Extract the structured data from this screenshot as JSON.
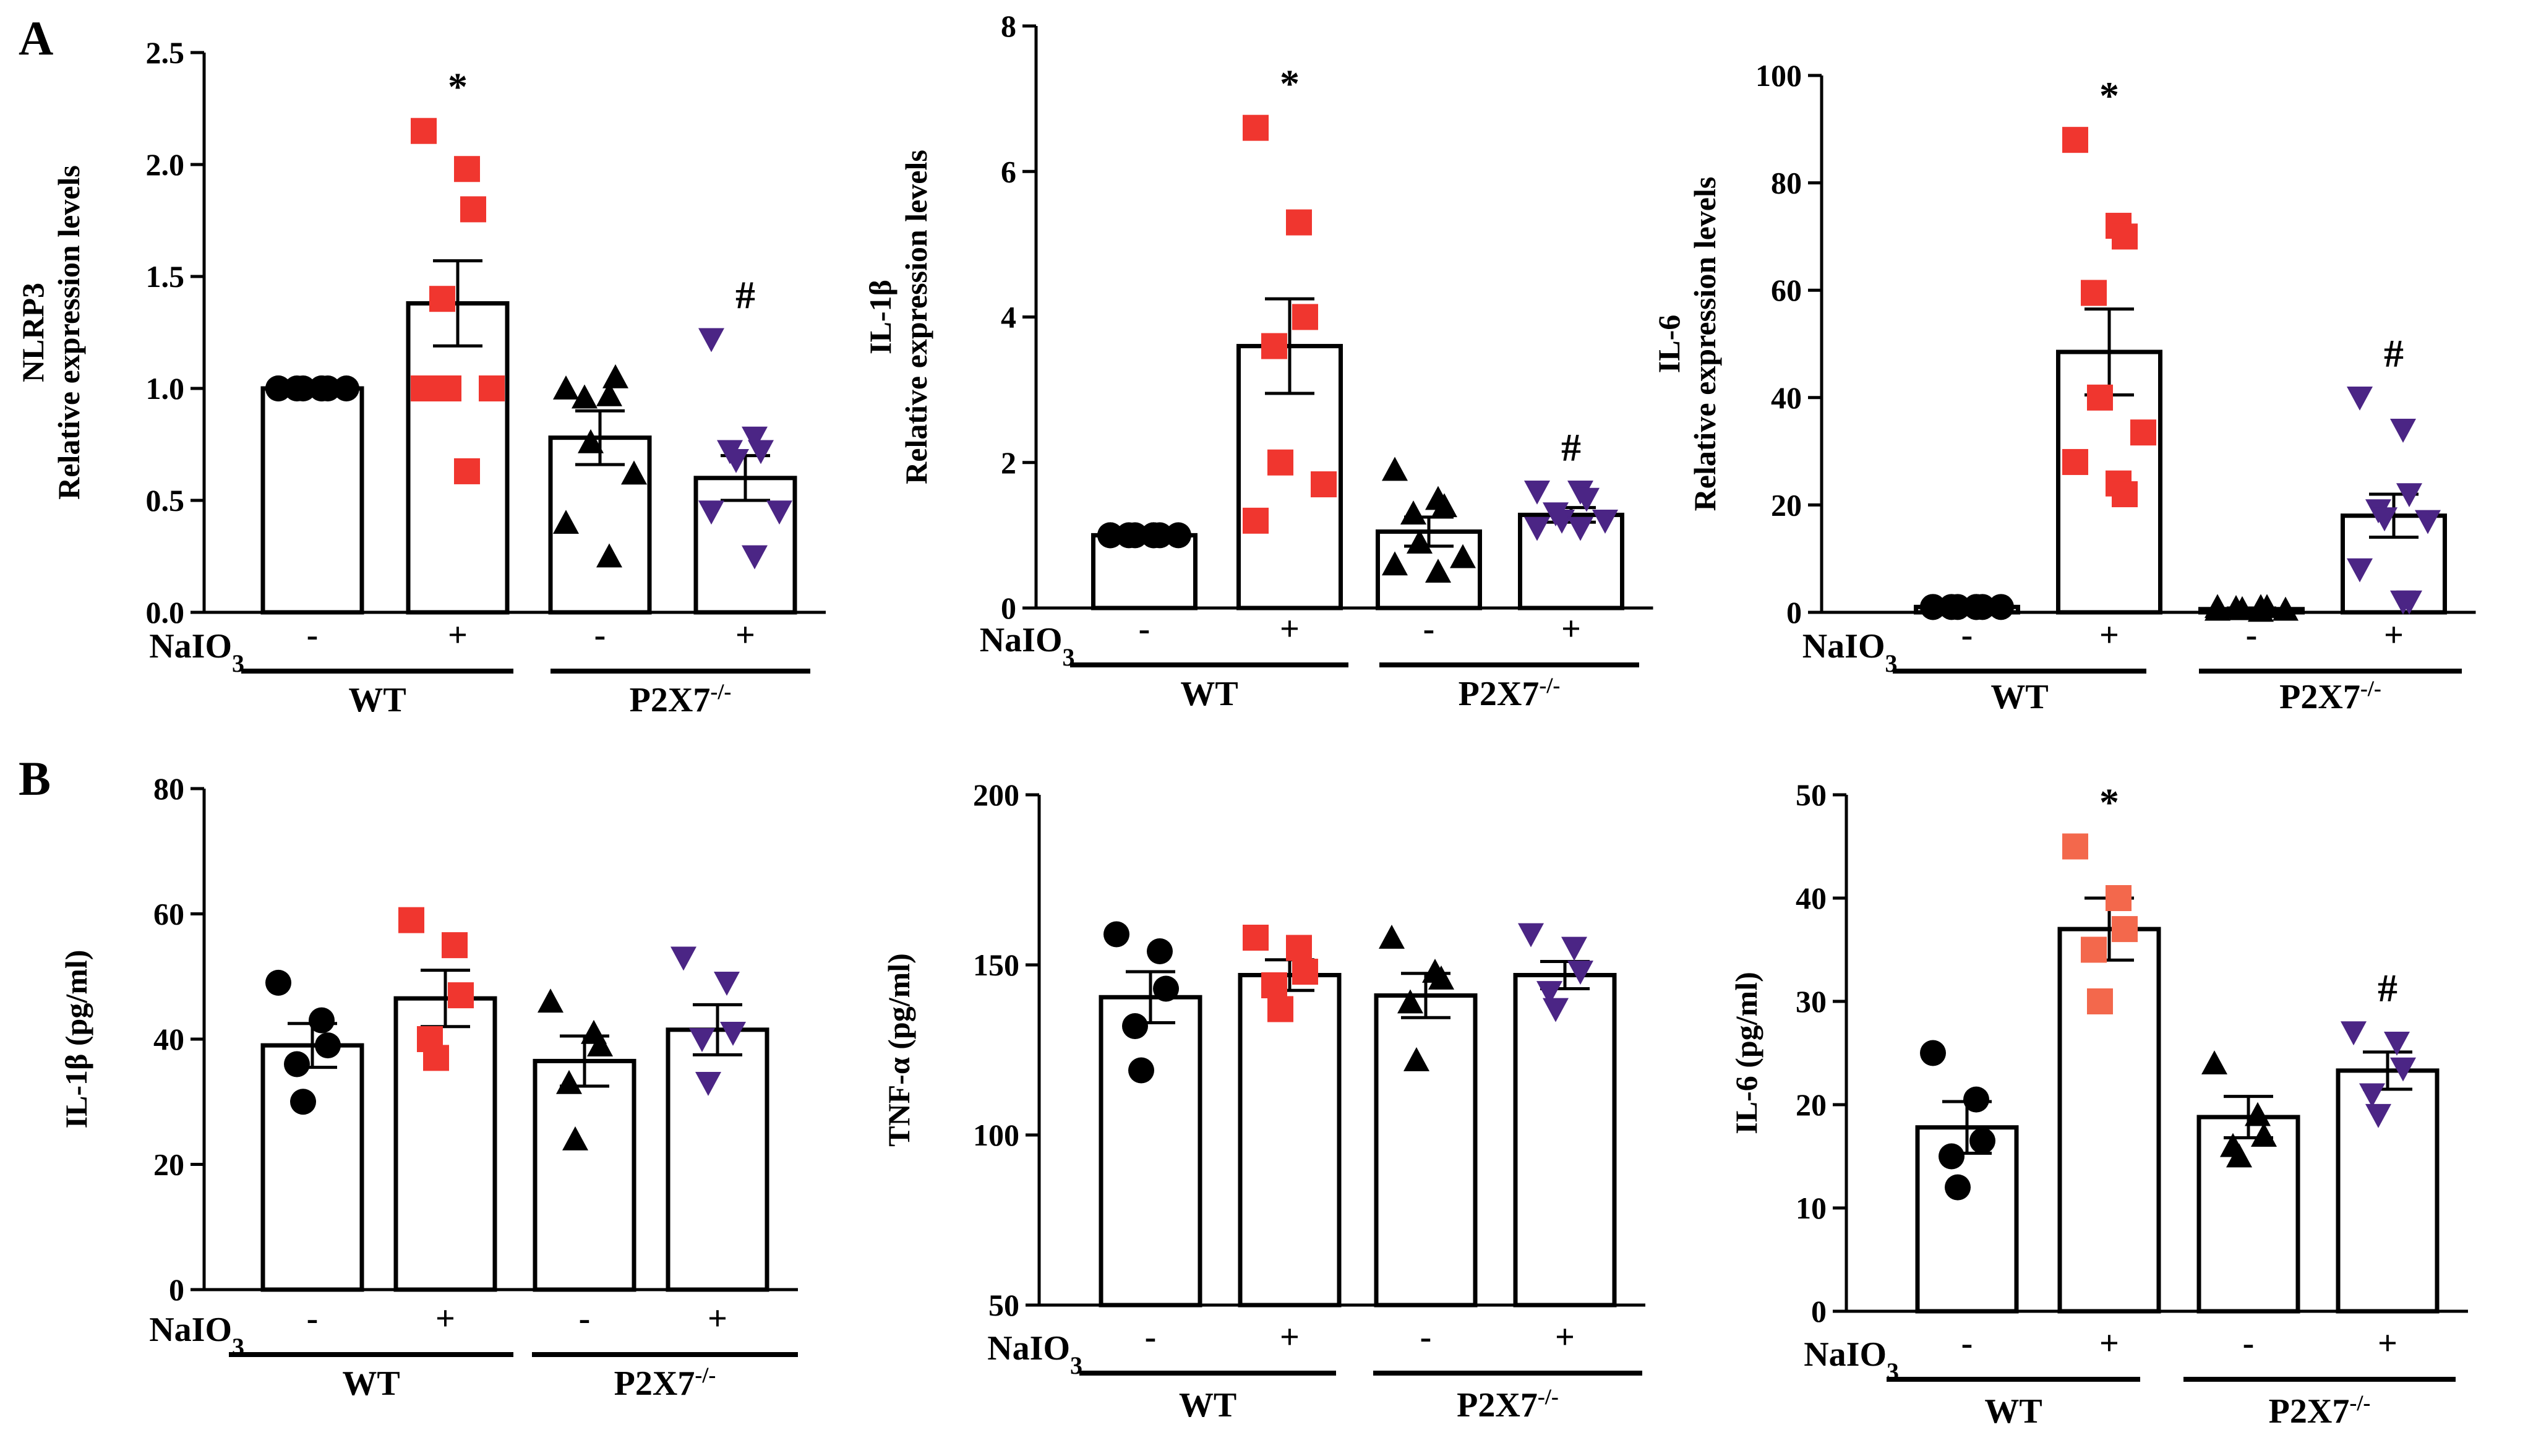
{
  "panel_labels": [
    "A",
    "B"
  ],
  "x_axis": {
    "treatment_label": "NaIO3",
    "treatment_values": [
      "-",
      "+",
      "-",
      "+"
    ],
    "group_labels": [
      "WT",
      "P2X7-/-"
    ]
  },
  "colors": {
    "WT_minus": "#000000",
    "WT_plus": "#f0362f",
    "WT_plus_IL6_B": "#f3684c",
    "KO_minus": "#000000",
    "KO_plus": "#4b2585"
  },
  "chart_data": [
    {
      "panel": "A",
      "type": "bar",
      "ylabel": [
        "NLRP3",
        "Relative expression levels"
      ],
      "ylim": [
        0,
        2.5
      ],
      "yticks": [
        "0.0",
        "0.5",
        "1.0",
        "1.5",
        "2.0",
        "2.5"
      ],
      "categories": [
        "WT -",
        "WT +",
        "P2X7-/- -",
        "P2X7-/- +"
      ],
      "values": [
        1.0,
        1.38,
        0.78,
        0.6
      ],
      "sem": [
        0.0,
        0.19,
        0.12,
        0.1
      ],
      "points": [
        [
          1,
          1,
          1,
          1,
          1,
          1,
          1,
          1
        ],
        [
          2.15,
          1.98,
          1.8,
          1.4,
          1.0,
          1.0,
          1.0,
          0.63
        ],
        [
          1.0,
          0.97,
          1.05,
          0.96,
          0.76,
          0.62,
          0.4,
          0.25
        ],
        [
          1.22,
          0.78,
          0.72,
          0.72,
          0.68,
          0.45,
          0.45,
          0.25
        ]
      ],
      "markers": [
        "circle",
        "square",
        "triangle",
        "triangle-down"
      ],
      "annotations": [
        {
          "category": 1,
          "text": "*"
        },
        {
          "category": 3,
          "text": "#"
        }
      ]
    },
    {
      "panel": "A",
      "type": "bar",
      "ylabel": [
        "IL-1β",
        "Relative expression levels"
      ],
      "ylim": [
        0,
        8
      ],
      "yticks": [
        "0",
        "2",
        "4",
        "6",
        "8"
      ],
      "categories": [
        "WT -",
        "WT +",
        "P2X7-/- -",
        "P2X7-/- +"
      ],
      "values": [
        1.0,
        3.6,
        1.05,
        1.28
      ],
      "sem": [
        0.0,
        0.65,
        0.2,
        0.1
      ],
      "points": [
        [
          1,
          1,
          1,
          1,
          1,
          1,
          1,
          1
        ],
        [
          6.6,
          5.3,
          4.0,
          3.6,
          2.0,
          1.7,
          1.2
        ],
        [
          1.9,
          1.5,
          1.4,
          1.3,
          0.9,
          0.7,
          0.6,
          0.5
        ],
        [
          1.6,
          1.6,
          1.5,
          1.3,
          1.2,
          1.2,
          1.1,
          1.1
        ]
      ],
      "markers": [
        "circle",
        "square",
        "triangle",
        "triangle-down"
      ],
      "annotations": [
        {
          "category": 1,
          "text": "*"
        },
        {
          "category": 3,
          "text": "#"
        }
      ]
    },
    {
      "panel": "A",
      "type": "bar",
      "ylabel": [
        "IL-6",
        "Relative expression levels"
      ],
      "ylim": [
        0,
        100
      ],
      "yticks": [
        "0",
        "20",
        "40",
        "60",
        "80",
        "100"
      ],
      "categories": [
        "WT -",
        "WT +",
        "P2X7-/- -",
        "P2X7-/- +"
      ],
      "values": [
        1.0,
        48.5,
        0.6,
        18.0
      ],
      "sem": [
        0.0,
        8.0,
        0.2,
        4.0
      ],
      "points": [
        [
          1,
          1,
          1,
          1,
          1,
          1,
          1,
          1
        ],
        [
          88,
          72,
          70,
          59.5,
          40,
          33.5,
          28,
          24,
          22
        ],
        [
          1.0,
          1.0,
          1.0,
          0.8,
          0.6,
          0.5,
          0.5,
          0.3
        ],
        [
          40,
          34,
          22,
          19,
          17.5,
          17,
          8,
          2,
          2
        ]
      ],
      "markers": [
        "circle",
        "square",
        "triangle",
        "triangle-down"
      ],
      "annotations": [
        {
          "category": 1,
          "text": "*"
        },
        {
          "category": 3,
          "text": "#"
        }
      ]
    },
    {
      "panel": "B",
      "type": "bar",
      "ylabel": [
        "IL-1β (pg/ml)"
      ],
      "ylim": [
        0,
        80
      ],
      "yticks": [
        "0",
        "20",
        "40",
        "60",
        "80"
      ],
      "categories": [
        "WT -",
        "WT +",
        "P2X7-/- -",
        "P2X7-/- +"
      ],
      "values": [
        39,
        46.5,
        36.5,
        41.5
      ],
      "sem": [
        3.5,
        4.5,
        4.0,
        4.0
      ],
      "points": [
        [
          49,
          43,
          39,
          36,
          30
        ],
        [
          59,
          55,
          47,
          40,
          37
        ],
        [
          46,
          41,
          39,
          33,
          24
        ],
        [
          53,
          49,
          41,
          40,
          33
        ]
      ],
      "markers": [
        "circle",
        "square",
        "triangle",
        "triangle-down"
      ],
      "annotations": []
    },
    {
      "panel": "B",
      "type": "bar",
      "ylabel": [
        "TNF-α (pg/ml)"
      ],
      "ylim": [
        50,
        200
      ],
      "yticks": [
        "50",
        "100",
        "150",
        "200"
      ],
      "categories": [
        "WT -",
        "WT +",
        "P2X7-/- -",
        "P2X7-/- +"
      ],
      "values": [
        140.5,
        147,
        141,
        147
      ],
      "sem": [
        7.5,
        4.5,
        6.5,
        4.0
      ],
      "points": [
        [
          159,
          154,
          143,
          132,
          119
        ],
        [
          158,
          155,
          148,
          144,
          137
        ],
        [
          158,
          148,
          146,
          139,
          122
        ],
        [
          159,
          155,
          148,
          142,
          137
        ]
      ],
      "markers": [
        "circle",
        "square",
        "triangle",
        "triangle-down"
      ],
      "annotations": []
    },
    {
      "panel": "B",
      "type": "bar",
      "ylabel": [
        "IL-6 (pg/ml)"
      ],
      "ylim": [
        0,
        50
      ],
      "yticks": [
        "0",
        "10",
        "20",
        "30",
        "40",
        "50"
      ],
      "categories": [
        "WT -",
        "WT +",
        "P2X7-/- -",
        "P2X7-/- +"
      ],
      "values": [
        17.8,
        37,
        18.8,
        23.3
      ],
      "sem": [
        2.5,
        3.0,
        2.0,
        1.8
      ],
      "points": [
        [
          25,
          20.5,
          16.5,
          15,
          12
        ],
        [
          45,
          40,
          37,
          35,
          30
        ],
        [
          24,
          19,
          17,
          16,
          15
        ],
        [
          27,
          26,
          23.5,
          21,
          19
        ]
      ],
      "markers": [
        "circle",
        "square",
        "triangle",
        "triangle-down"
      ],
      "annotations": [
        {
          "category": 1,
          "text": "*"
        },
        {
          "category": 3,
          "text": "#"
        }
      ]
    }
  ]
}
